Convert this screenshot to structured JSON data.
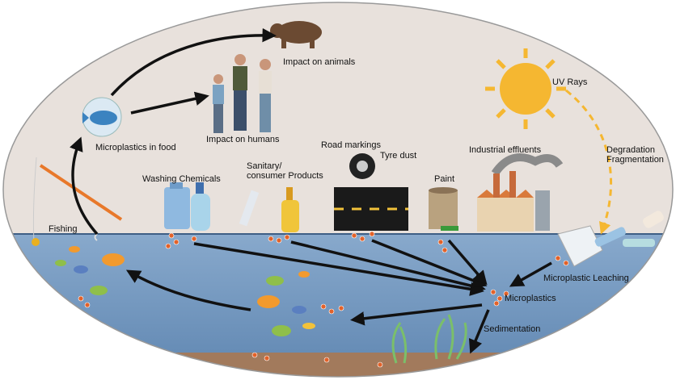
{
  "labels": {
    "animals": "Impact on animals",
    "food": "Microplastics in food",
    "humans": "Impact on humans",
    "uv": "UV Rays",
    "road": "Road markings",
    "tyre": "Tyre dust",
    "industrial": "Industrial effluents",
    "washing": "Washing Chemicals",
    "sanitary": [
      "Sanitary/",
      "consumer Products"
    ],
    "paint": "Paint",
    "degradation": [
      "Degradation",
      "Fragmentation"
    ],
    "fishing": "Fishing",
    "leaching": "Microplastic Leaching",
    "microplastics": "Microplastics",
    "sedimentation": "Sedimentation"
  }
}
